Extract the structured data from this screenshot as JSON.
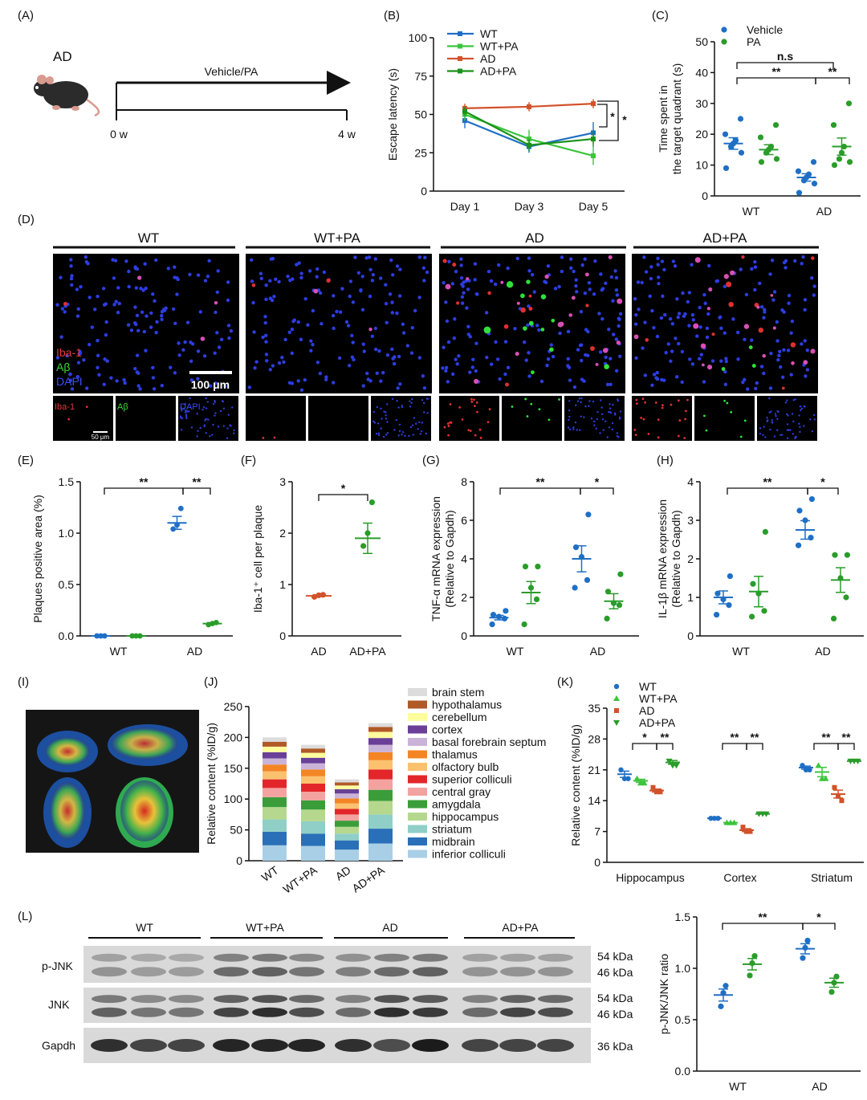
{
  "panel_labels": [
    "(A)",
    "(B)",
    "(C)",
    "(D)",
    "(E)",
    "(F)",
    "(G)",
    "(H)",
    "(I)",
    "(J)",
    "(K)",
    "(L)"
  ],
  "panelA": {
    "model": "AD",
    "treatment": "Vehicle/PA",
    "start": "0 w",
    "end": "4 w"
  },
  "chart_data": [
    {
      "id": "B",
      "type": "line",
      "ylabel": "Escape latency (s)",
      "ylim": [
        0,
        100
      ],
      "yticks": [
        "0",
        "25",
        "50",
        "75",
        "100"
      ],
      "categories": [
        "Day 1",
        "Day 3",
        "Day 5"
      ],
      "series": [
        {
          "name": "WT",
          "color": "#1f6fc5",
          "values": [
            46,
            29,
            38
          ],
          "err": [
            5,
            4,
            7
          ]
        },
        {
          "name": "WT+PA",
          "color": "#3cc43c",
          "values": [
            50,
            34,
            23
          ],
          "err": [
            4,
            6,
            6
          ]
        },
        {
          "name": "AD",
          "color": "#d2522b",
          "values": [
            54,
            55,
            57
          ],
          "err": [
            3,
            3,
            3
          ]
        },
        {
          "name": "AD+PA",
          "color": "#199219",
          "values": [
            52,
            30,
            34
          ],
          "err": [
            3,
            4,
            5
          ]
        }
      ],
      "significance": [
        "*",
        "*"
      ]
    },
    {
      "id": "C",
      "type": "scatter",
      "ylabel": [
        "Time spent in",
        "the target quadrant (s)"
      ],
      "ylim": [
        0,
        50
      ],
      "yticks": [
        "0",
        "10",
        "20",
        "30",
        "40",
        "50"
      ],
      "categories": [
        "WT",
        "AD"
      ],
      "series": [
        {
          "name": "Vehicle",
          "color": "#1f6fc5",
          "points": [
            [
              25,
              20,
              18,
              17,
              16,
              14,
              9
            ],
            [
              11,
              8,
              7,
              6,
              5,
              4,
              1
            ]
          ],
          "mean": [
            17,
            6
          ]
        },
        {
          "name": "PA",
          "color": "#2a9c2a",
          "points": [
            [
              23,
              19,
              16,
              15,
              14,
              12,
              11
            ],
            [
              30,
              23,
              16,
              14,
              12,
              11,
              10
            ]
          ],
          "mean": [
            15,
            16
          ]
        }
      ],
      "significance": [
        "n.s",
        "**",
        "**"
      ]
    },
    {
      "id": "E",
      "type": "scatter",
      "ylabel": "Plaques positive area (%)",
      "ylim": [
        0,
        1.5
      ],
      "yticks": [
        "0.0",
        "0.5",
        "1.0",
        "1.5"
      ],
      "categories": [
        "WT",
        "AD"
      ],
      "series": [
        {
          "name": "Vehicle",
          "color": "#1f6fc5",
          "points": [
            [
              0,
              0,
              0
            ],
            [
              1.24,
              1.08,
              1.04
            ]
          ],
          "mean": [
            0,
            1.1
          ]
        },
        {
          "name": "PA",
          "color": "#2a9c2a",
          "points": [
            [
              0,
              0,
              0
            ],
            [
              0.13,
              0.12,
              0.11
            ]
          ],
          "mean": [
            0,
            0.12
          ]
        }
      ],
      "significance": [
        "**",
        "**"
      ]
    },
    {
      "id": "F",
      "type": "scatter",
      "ylabel": "Iba-1⁺ cell per plaque",
      "ylim": [
        0,
        3
      ],
      "yticks": [
        "0",
        "1",
        "2",
        "3"
      ],
      "categories": [
        "AD",
        "AD+PA"
      ],
      "series": [
        {
          "name": "AD",
          "color": "#d2522b",
          "points": [
            [
              0.8,
              0.79,
              0.76
            ]
          ],
          "mean": [
            0.78
          ]
        },
        {
          "name": "AD+PA",
          "color": "#2a9c2a",
          "points": [
            [
              2.6,
              2.0,
              1.75
            ]
          ],
          "mean": [
            1.9
          ]
        }
      ],
      "significance": [
        "*"
      ]
    },
    {
      "id": "G",
      "type": "scatter",
      "ylabel": [
        "TNF-α mRNA expression",
        "(Relative to Gapdh)"
      ],
      "ylim": [
        0,
        8
      ],
      "yticks": [
        "0",
        "2",
        "4",
        "6",
        "8"
      ],
      "categories": [
        "WT",
        "AD"
      ],
      "series": [
        {
          "name": "Vehicle",
          "color": "#1f6fc5",
          "points": [
            [
              1.3,
              1.1,
              1.0,
              0.9,
              0.6
            ],
            [
              6.3,
              4.6,
              4.1,
              2.9,
              2.5
            ]
          ],
          "mean": [
            0.95,
            4.0
          ]
        },
        {
          "name": "PA",
          "color": "#2a9c2a",
          "points": [
            [
              3.6,
              3.6,
              2.5,
              1.9,
              0.6
            ],
            [
              3.2,
              2.3,
              1.7,
              1.6,
              0.9
            ]
          ],
          "mean": [
            2.25,
            1.8
          ]
        }
      ],
      "significance": [
        "**",
        "*"
      ]
    },
    {
      "id": "H",
      "type": "scatter",
      "ylabel": [
        "IL-1β mRNA expression",
        "(Relative to Gapdh)"
      ],
      "ylim": [
        0,
        4
      ],
      "yticks": [
        "0",
        "1",
        "2",
        "3",
        "4"
      ],
      "categories": [
        "WT",
        "AD"
      ],
      "series": [
        {
          "name": "Vehicle",
          "color": "#1f6fc5",
          "points": [
            [
              1.55,
              1.1,
              0.95,
              0.8,
              0.55
            ],
            [
              3.55,
              3.25,
              3.0,
              2.55,
              2.35
            ]
          ],
          "mean": [
            1.0,
            2.75
          ]
        },
        {
          "name": "PA",
          "color": "#2a9c2a",
          "points": [
            [
              2.7,
              1.35,
              1.1,
              0.65,
              0.5
            ],
            [
              2.1,
              2.1,
              1.5,
              1.0,
              0.45
            ]
          ],
          "mean": [
            1.15,
            1.45
          ]
        }
      ],
      "significance": [
        "**",
        "*"
      ]
    },
    {
      "id": "J",
      "type": "bar",
      "ylabel": "Relative content (%ID/g)",
      "ylim": [
        0,
        250
      ],
      "yticks": [
        "0",
        "50",
        "100",
        "150",
        "200",
        "250"
      ],
      "categories": [
        "WT",
        "WT+PA",
        "AD",
        "AD+PA"
      ],
      "regions": [
        "inferior colliculi",
        "midbrain",
        "striatum",
        "hippocampus",
        "amygdala",
        "central gray",
        "superior colliculi",
        "olfactory bulb",
        "thalamus",
        "basal forebrain septum",
        "cortex",
        "cerebellum",
        "hypothalamus",
        "brain stem"
      ],
      "legend_order": [
        "brain stem",
        "hypothalamus",
        "cerebellum",
        "cortex",
        "basal forebrain septum",
        "thalamus",
        "olfactory bulb",
        "superior colliculi",
        "central gray",
        "amygdala",
        "hippocampus",
        "striatum",
        "midbrain",
        "inferior colliculi"
      ],
      "colors": [
        "#a9cfe6",
        "#2a70b8",
        "#8fcfc7",
        "#b5d88e",
        "#3a9d3a",
        "#f4a2a0",
        "#e2262a",
        "#fbc16f",
        "#f48524",
        "#cab3d8",
        "#6a3f98",
        "#fdfd9e",
        "#b05a28",
        "#dcdcdc"
      ],
      "values": [
        [
          25,
          22,
          20,
          20,
          16,
          15,
          14,
          13,
          11,
          10,
          10,
          9,
          8,
          7
        ],
        [
          24,
          20,
          20,
          19,
          15,
          14,
          13,
          12,
          11,
          10,
          9,
          8,
          7,
          6
        ],
        [
          18,
          15,
          11,
          11,
          10,
          10,
          9,
          9,
          8,
          8,
          7,
          6,
          5,
          5
        ],
        [
          28,
          24,
          23,
          22,
          18,
          17,
          16,
          15,
          13,
          12,
          11,
          10,
          8,
          6
        ]
      ]
    },
    {
      "id": "K",
      "type": "scatter",
      "ylabel": "Relative content (%ID/g)",
      "ylim": [
        0,
        35
      ],
      "yticks": [
        "0",
        "7",
        "14",
        "21",
        "28",
        "35"
      ],
      "categories": [
        "Hippocampus",
        "Cortex",
        "Striatum"
      ],
      "series": [
        {
          "name": "WT",
          "color": "#1f6fc5",
          "marker": "circle",
          "points": [
            [
              21,
              19,
              19
            ],
            [
              10,
              10,
              10
            ],
            [
              22,
              21,
              21
            ]
          ],
          "mean": [
            20,
            10,
            21.5
          ]
        },
        {
          "name": "WT+PA",
          "color": "#3cc43c",
          "marker": "triangle",
          "points": [
            [
              19,
              18,
              18
            ],
            [
              9,
              9,
              9
            ],
            [
              22,
              19,
              19
            ]
          ],
          "mean": [
            18.5,
            9,
            20.5
          ]
        },
        {
          "name": "AD",
          "color": "#d2522b",
          "marker": "square",
          "points": [
            [
              17,
              16,
              16
            ],
            [
              8,
              7,
              7
            ],
            [
              17,
              15,
              14
            ]
          ],
          "mean": [
            16.3,
            7.3,
            15.5
          ]
        },
        {
          "name": "AD+PA",
          "color": "#2a9c2a",
          "marker": "invtriangle",
          "points": [
            [
              23,
              22,
              22
            ],
            [
              11,
              11,
              11
            ],
            [
              23,
              23,
              23
            ]
          ],
          "mean": [
            22.7,
            11,
            23
          ]
        }
      ],
      "significance": [
        [
          "*",
          "**"
        ],
        [
          "**",
          "**"
        ],
        [
          "**",
          "**"
        ]
      ]
    },
    {
      "id": "L",
      "type": "scatter",
      "ylabel": "p-JNK/JNK ratio",
      "ylim": [
        0,
        1.5
      ],
      "yticks": [
        "0.0",
        "0.5",
        "1.0",
        "1.5"
      ],
      "categories": [
        "WT",
        "AD"
      ],
      "series": [
        {
          "name": "Vehicle",
          "color": "#1f6fc5",
          "points": [
            [
              0.83,
              0.76,
              0.63
            ],
            [
              1.27,
              1.2,
              1.1
            ]
          ],
          "mean": [
            0.74,
            1.19
          ]
        },
        {
          "name": "PA",
          "color": "#2a9c2a",
          "points": [
            [
              1.12,
              1.05,
              0.93
            ],
            [
              0.92,
              0.86,
              0.77
            ]
          ],
          "mean": [
            1.04,
            0.86
          ]
        }
      ],
      "significance": [
        "**",
        "*"
      ]
    }
  ],
  "panelD": {
    "groups": [
      "WT",
      "WT+PA",
      "AD",
      "AD+PA"
    ],
    "stains": [
      "Iba-1",
      "Aβ",
      "DAPI"
    ],
    "scale_large": "100 μm",
    "scale_small": "50 μm"
  },
  "panelL": {
    "groups": [
      "WT",
      "WT+PA",
      "AD",
      "AD+PA"
    ],
    "blots": [
      "p-JNK",
      "JNK",
      "Gapdh"
    ],
    "sizes": [
      "54 kDa",
      "46 kDa",
      "54 kDa",
      "46 kDa",
      "36 kDa"
    ]
  }
}
